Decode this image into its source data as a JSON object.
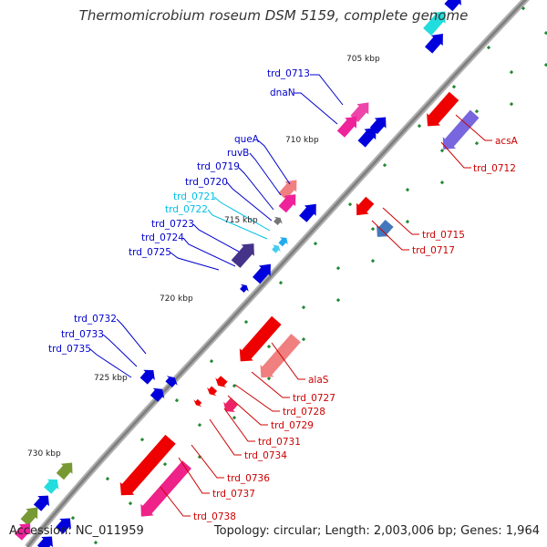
{
  "header": {
    "title": "Thermomicrobium roseum DSM 5159, complete genome"
  },
  "footer": {
    "accession": "Accession: NC_011959",
    "summary": "Topology: circular; Length: 2,003,006 bp; Genes: 1,964"
  },
  "ticks": [
    "705 kbp",
    "710 kbp",
    "715 kbp",
    "720 kbp",
    "725 kbp",
    "730 kbp"
  ],
  "labels_top_strand": [
    {
      "text": "trd_0713",
      "color": "#0000cc"
    },
    {
      "text": "dnaN",
      "color": "#0000cc"
    },
    {
      "text": "queA",
      "color": "#0000cc"
    },
    {
      "text": "ruvB",
      "color": "#0000cc"
    },
    {
      "text": "trd_0719",
      "color": "#0000cc"
    },
    {
      "text": "trd_0720",
      "color": "#0000cc"
    },
    {
      "text": "trd_0721",
      "color": "#00bfe6"
    },
    {
      "text": "trd_0722",
      "color": "#00bfe6"
    },
    {
      "text": "trd_0723",
      "color": "#0000cc"
    },
    {
      "text": "trd_0724",
      "color": "#0000cc"
    },
    {
      "text": "trd_0725",
      "color": "#0000cc"
    },
    {
      "text": "trd_0732",
      "color": "#0000cc"
    },
    {
      "text": "trd_0733",
      "color": "#0000cc"
    },
    {
      "text": "trd_0735",
      "color": "#0000cc"
    }
  ],
  "labels_bottom_strand": [
    {
      "text": "acsA",
      "color": "#cc0000"
    },
    {
      "text": "trd_0712",
      "color": "#cc0000"
    },
    {
      "text": "trd_0715",
      "color": "#cc0000"
    },
    {
      "text": "trd_0717",
      "color": "#cc0000"
    },
    {
      "text": "alaS",
      "color": "#cc0000"
    },
    {
      "text": "trd_0727",
      "color": "#cc0000"
    },
    {
      "text": "trd_0728",
      "color": "#cc0000"
    },
    {
      "text": "trd_0729",
      "color": "#cc0000"
    },
    {
      "text": "trd_0731",
      "color": "#cc0000"
    },
    {
      "text": "trd_0734",
      "color": "#cc0000"
    },
    {
      "text": "trd_0736",
      "color": "#cc0000"
    },
    {
      "text": "trd_0737",
      "color": "#cc0000"
    },
    {
      "text": "trd_0738",
      "color": "#cc0000"
    }
  ],
  "colors": {
    "forward_strand": "#0000dd",
    "reverse_strand": "#ee0000",
    "backbone": "#808080",
    "pink": "#ee2299",
    "salmon": "#f08080",
    "purple": "#7766dd",
    "cyan": "#22dddd",
    "olive": "#779933",
    "steelblue": "#4477bb",
    "gc_dots": "#228833"
  }
}
